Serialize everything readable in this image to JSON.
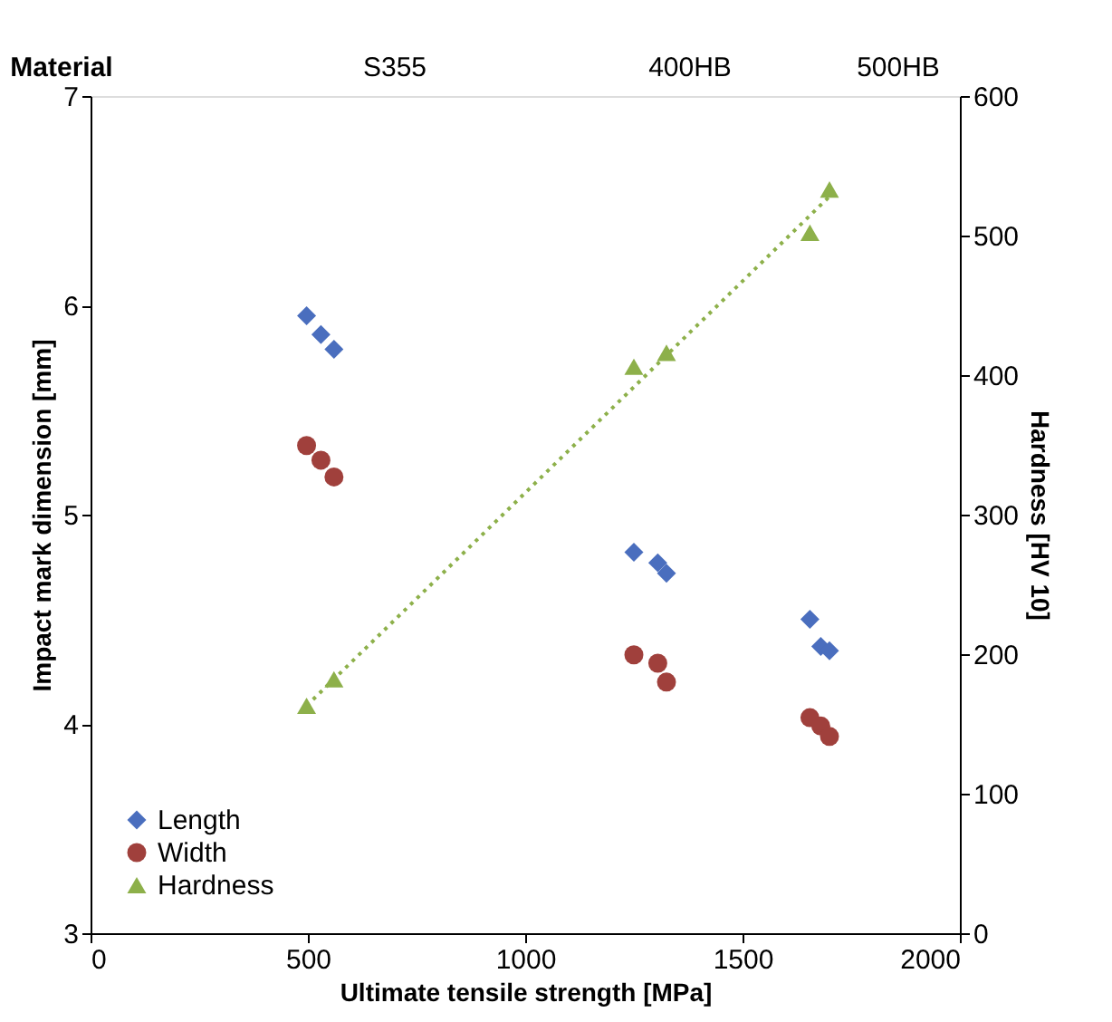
{
  "chart_data": {
    "type": "scatter",
    "xlabel": "Ultimate tensile strength [MPa]",
    "ylabel": "Impact mark dimension [mm]",
    "y2label": "Hardness [HV 10]",
    "xlim": [
      0,
      2000
    ],
    "xticks": [
      0,
      500,
      1000,
      1500,
      2000
    ],
    "ylim": [
      3,
      7
    ],
    "yticks": [
      3,
      4,
      5,
      6,
      7
    ],
    "y2lim": [
      0,
      600
    ],
    "y2ticks": [
      0,
      100,
      200,
      300,
      400,
      500,
      600
    ],
    "annotations": [
      "Material",
      "S355",
      "400HB",
      "500HB"
    ],
    "grid": false,
    "legend": "bottom left",
    "series": [
      {
        "name": "Length",
        "color": "#4a6ebe",
        "marker": "diamond",
        "x": [
          497,
          530,
          560,
          1250,
          1305,
          1325,
          1655,
          1680,
          1700
        ],
        "values": [
          5.95,
          5.86,
          5.79,
          4.82,
          4.77,
          4.72,
          4.5,
          4.37,
          4.35
        ]
      },
      {
        "name": "Width",
        "color": "#a0403c",
        "marker": "circle",
        "x": [
          497,
          530,
          560,
          1250,
          1305,
          1325,
          1655,
          1680,
          1700
        ],
        "values": [
          5.33,
          5.26,
          5.18,
          4.33,
          4.29,
          4.2,
          4.03,
          3.99,
          3.94
        ]
      },
      {
        "name": "Hardness",
        "color": "#8db04a",
        "marker": "triangle",
        "axis": "y2",
        "x": [
          497,
          560,
          1250,
          1325,
          1655,
          1700
        ],
        "values": [
          163,
          182,
          406,
          416,
          502,
          533
        ]
      },
      {
        "type": "line",
        "color": "#8db04a",
        "line_style": "dotted",
        "marker": "none",
        "axis": "y2",
        "x": [
          497,
          1700
        ],
        "values": [
          163,
          528
        ]
      }
    ]
  }
}
